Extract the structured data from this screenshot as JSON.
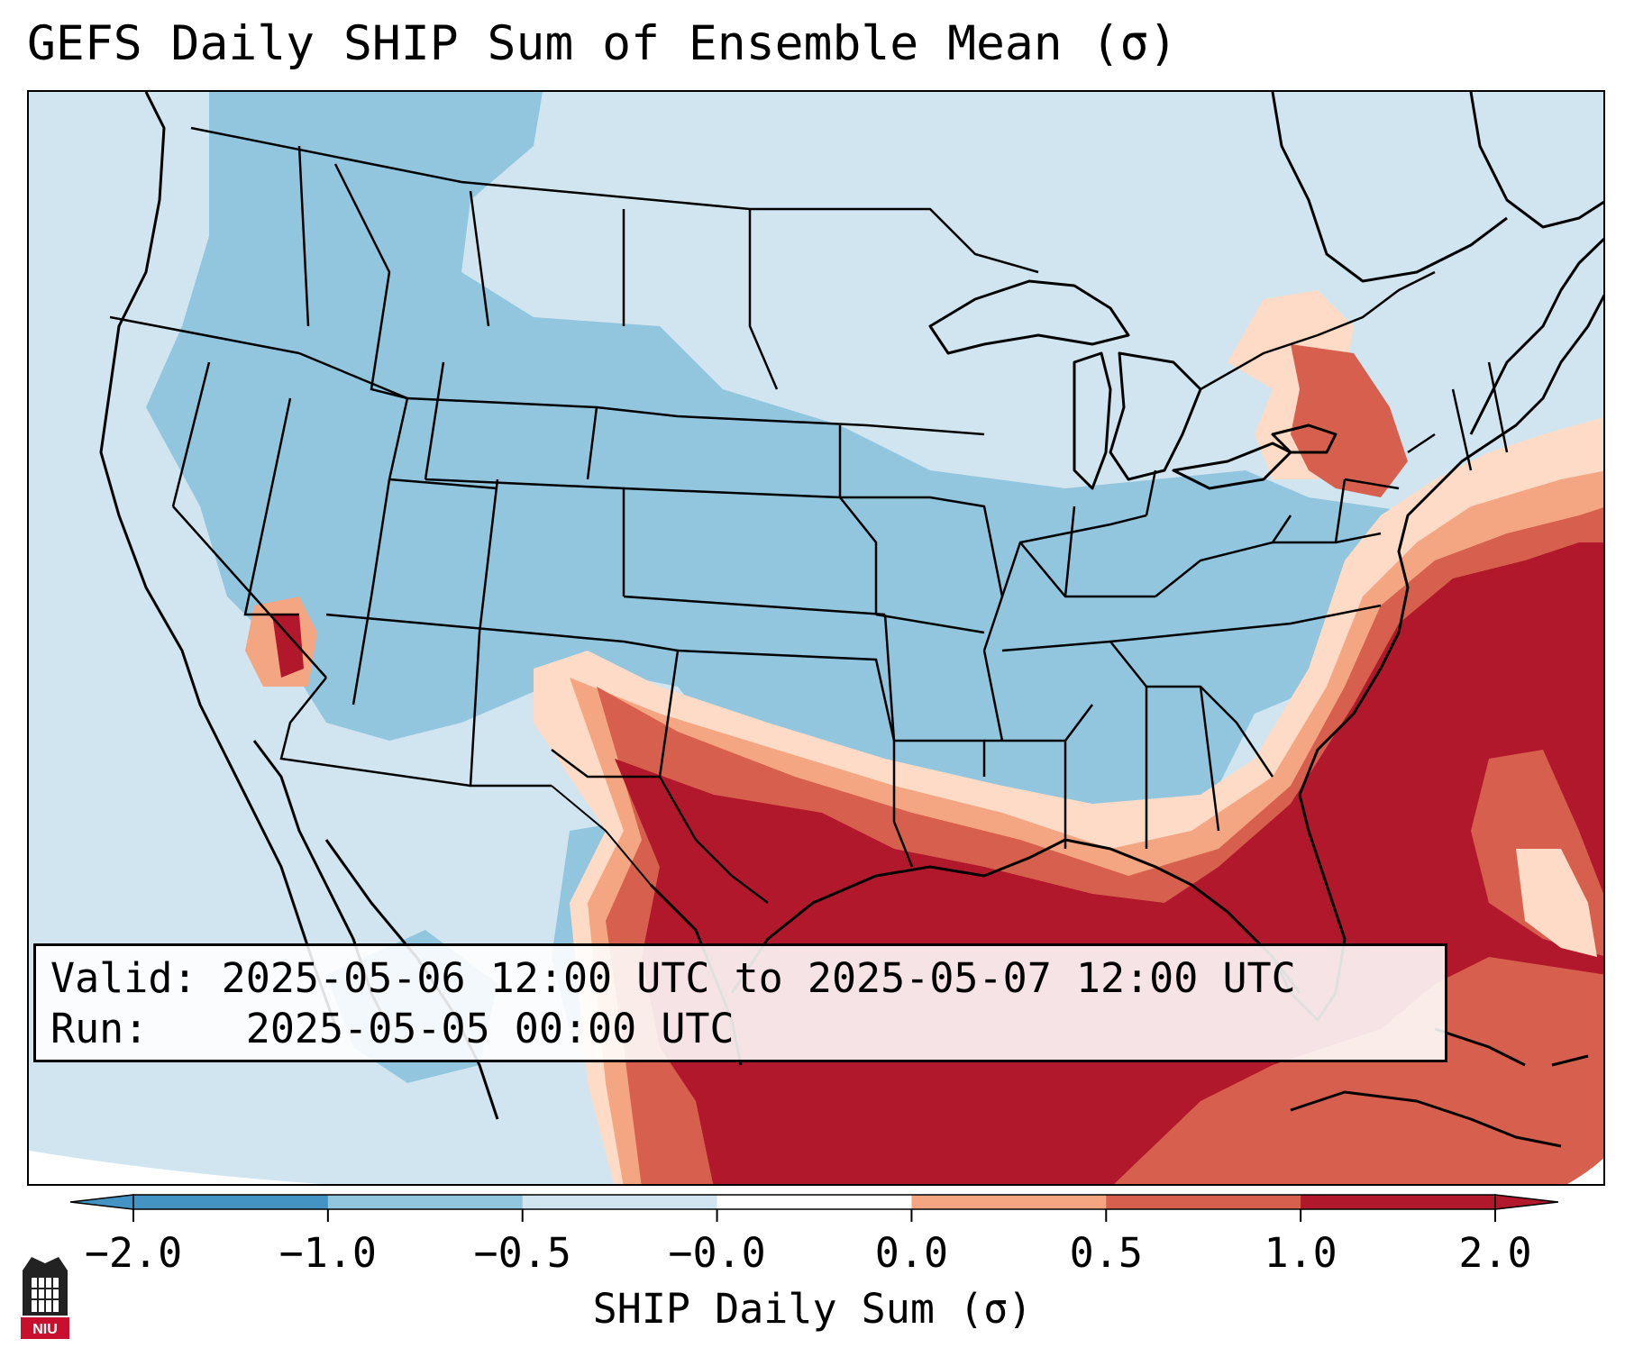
{
  "title": "GEFS Daily SHIP Sum of Ensemble Mean (σ)",
  "info": {
    "valid_label": "Valid:",
    "valid_value": "2025-05-06 12:00 UTC to 2025-05-07 12:00 UTC",
    "run_label": "Run:",
    "run_value": "2025-05-05 00:00 UTC"
  },
  "colorbar": {
    "label": "SHIP Daily Sum (σ)",
    "tick_labels": [
      "−2.0",
      "−1.0",
      "−0.5",
      "−0.0",
      "0.0",
      "0.5",
      "1.0",
      "2.0"
    ],
    "colors": [
      "#4393c3",
      "#92c5de",
      "#d1e5f0",
      "#ffffff",
      "#fddbc7",
      "#f4a582",
      "#d6604d",
      "#b2182b"
    ],
    "extend": "both"
  },
  "map": {
    "projection": "Lambert Conformal, CONUS",
    "background_color": "#d1e5f0",
    "field_description": "Normalized SHIP daily sum anomaly"
  },
  "logo": {
    "text": "NIU",
    "brand_color": "#c8102e"
  }
}
